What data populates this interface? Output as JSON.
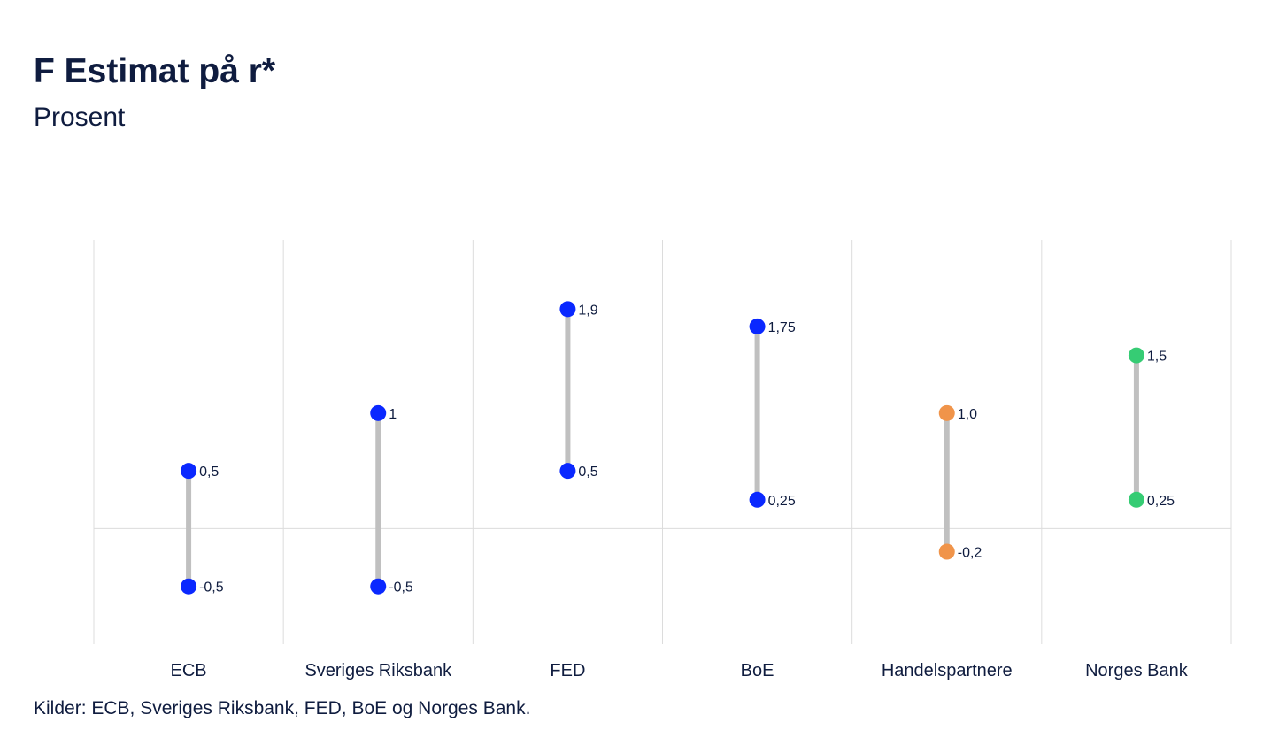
{
  "title": "F Estimat på r*",
  "subtitle": "Prosent",
  "source": "Kilder: ECB, Sveriges Riksbank, FED,  BoE og Norges Bank.",
  "chart_data": {
    "type": "range-dot",
    "ylim": [
      -1.0,
      2.5
    ],
    "grid": "vertical-separators",
    "categories": [
      "ECB",
      "Sveriges Riksbank",
      "FED",
      "BoE",
      "Handelspartnere",
      "Norges Bank"
    ],
    "series": [
      {
        "category": "ECB",
        "low": -0.5,
        "high": 0.5,
        "low_label": "-0,5",
        "high_label": "0,5",
        "color": "#0a28ff"
      },
      {
        "category": "Sveriges Riksbank",
        "low": -0.5,
        "high": 1.0,
        "low_label": "-0,5",
        "high_label": "1",
        "color": "#0a28ff"
      },
      {
        "category": "FED",
        "low": 0.5,
        "high": 1.9,
        "low_label": "0,5",
        "high_label": "1,9",
        "color": "#0a28ff"
      },
      {
        "category": "BoE",
        "low": 0.25,
        "high": 1.75,
        "low_label": "0,25",
        "high_label": "1,75",
        "color": "#0a28ff"
      },
      {
        "category": "Handelspartnere",
        "low": -0.2,
        "high": 1.0,
        "low_label": "-0,2",
        "high_label": "1,0",
        "color": "#f0944a"
      },
      {
        "category": "Norges Bank",
        "low": 0.25,
        "high": 1.5,
        "low_label": "0,25",
        "high_label": "1,5",
        "color": "#36cc74"
      }
    ],
    "range_line_color": "#c0c0c0",
    "grid_color": "#dcdcdc"
  }
}
